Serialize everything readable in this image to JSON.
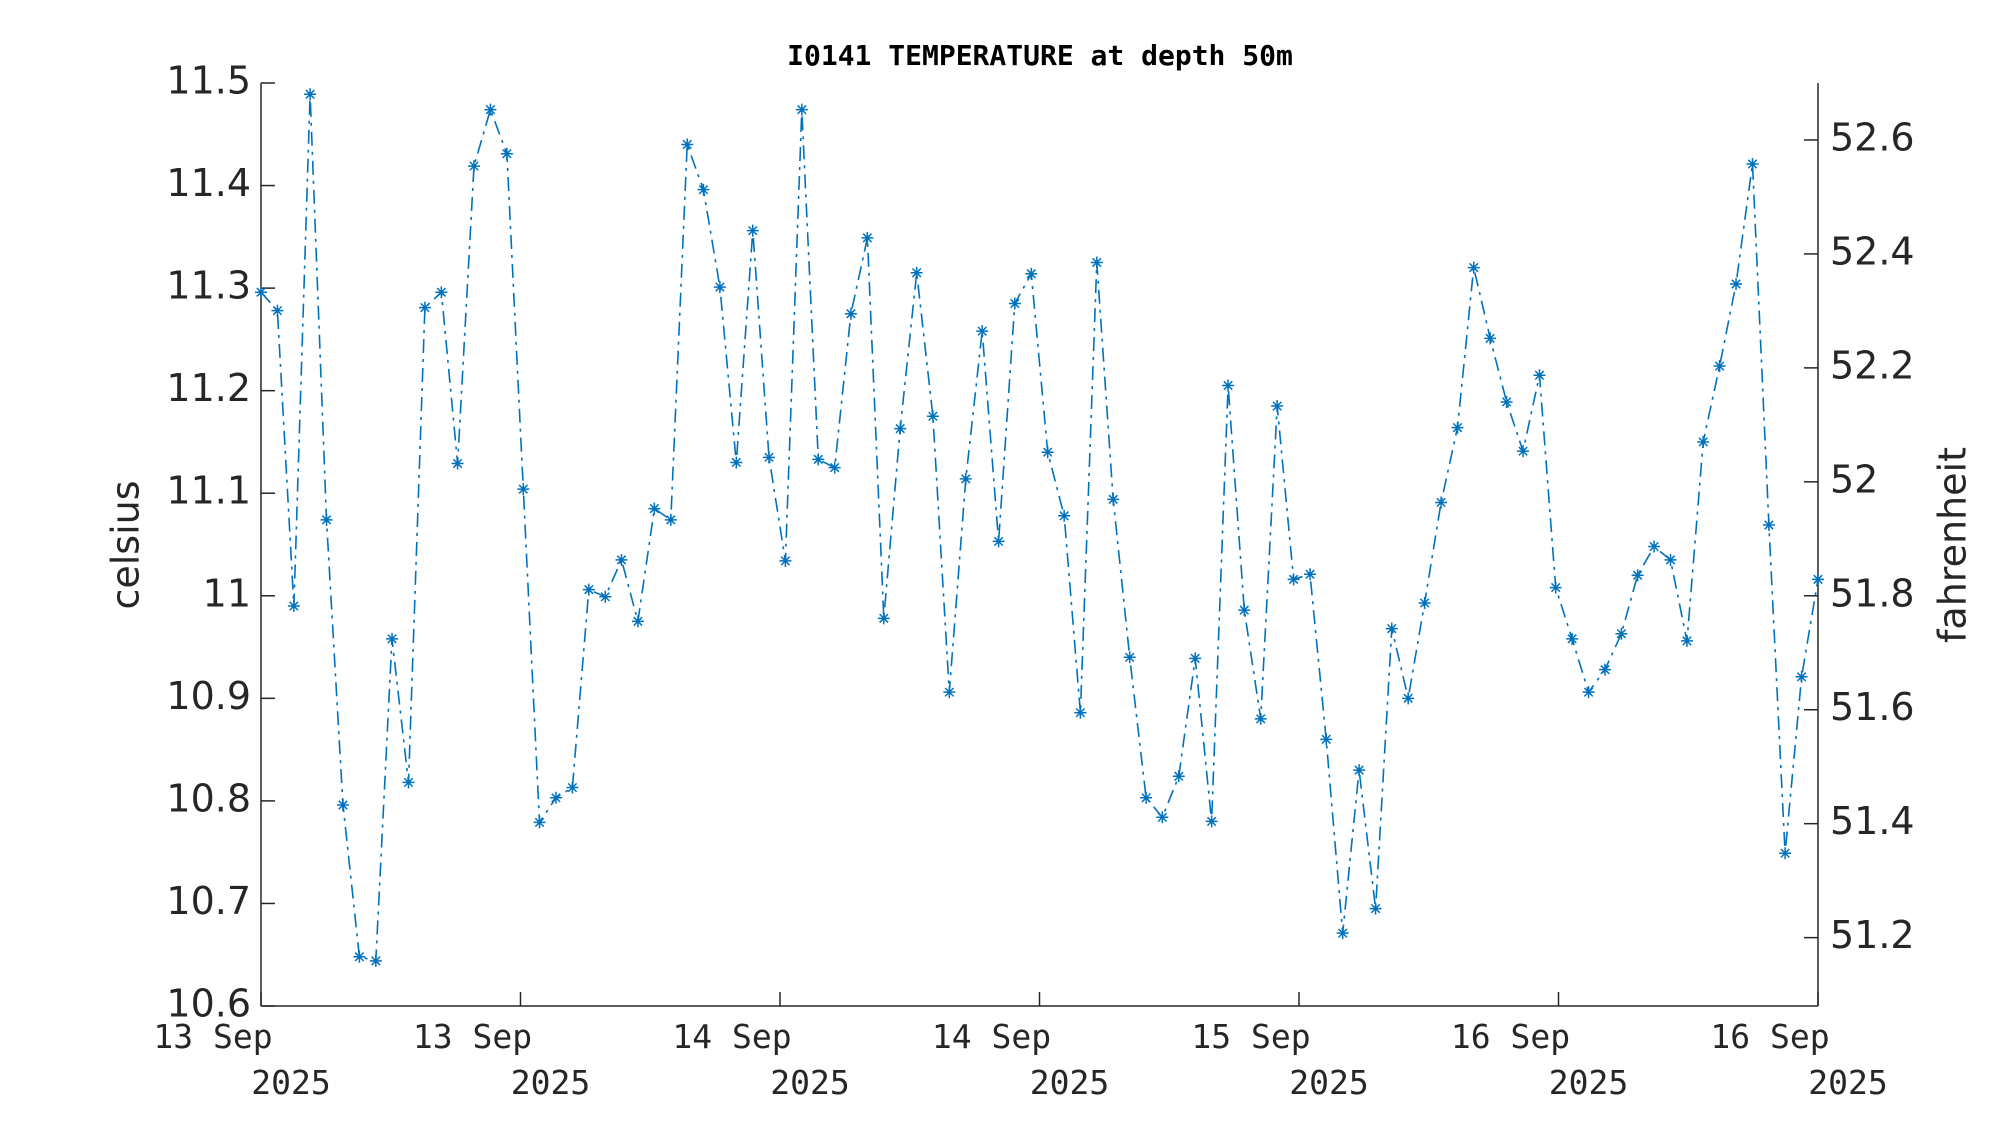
{
  "chart_data": {
    "type": "line",
    "title": "I0141 TEMPERATURE at depth 50m",
    "ylabel": "celsius",
    "y2label": "fahrenheit",
    "x": [
      0,
      0.76,
      1.52,
      2.27,
      3.03,
      3.79,
      4.55,
      5.31,
      6.06,
      6.82,
      7.58,
      8.34,
      9.09,
      9.85,
      10.61,
      11.37,
      12.13,
      12.88,
      13.64,
      14.4,
      15.16,
      15.92,
      16.67,
      17.43,
      18.19,
      18.95,
      19.71,
      20.46,
      21.22,
      21.98,
      22.74,
      23.49,
      24.25,
      25.01,
      25.77,
      26.53,
      27.28,
      28.04,
      28.8,
      29.56,
      30.32,
      31.07,
      31.83,
      32.59,
      33.35,
      34.11,
      34.86,
      35.62,
      36.38,
      37.14,
      37.89,
      38.65,
      39.41,
      40.17,
      40.93,
      41.68,
      42.44,
      43.2,
      43.96,
      44.72,
      45.47,
      46.23,
      46.99,
      47.75,
      48.51,
      49.26,
      50.02,
      50.78,
      51.54,
      52.29,
      53.05,
      53.81,
      54.57,
      55.33,
      56.08,
      56.84,
      57.6,
      58.36,
      59.12,
      59.87,
      60.63,
      61.39,
      62.15,
      62.91,
      63.66,
      64.42,
      65.18,
      65.94,
      66.69,
      67.45,
      68.21,
      68.97,
      69.73,
      70.48,
      71.24,
      72
    ],
    "series": [
      {
        "name": "celsius",
        "color": "#0072bd",
        "values": [
          11.296,
          11.278,
          10.99,
          11.489,
          11.074,
          10.796,
          10.648,
          10.644,
          10.958,
          10.818,
          11.281,
          11.296,
          11.129,
          11.419,
          11.474,
          11.431,
          11.104,
          10.779,
          10.803,
          10.813,
          11.006,
          10.999,
          11.035,
          10.975,
          11.085,
          11.074,
          11.44,
          11.396,
          11.301,
          11.13,
          11.356,
          11.135,
          11.034,
          11.474,
          11.133,
          11.125,
          11.275,
          11.349,
          10.978,
          11.163,
          11.315,
          11.175,
          10.906,
          11.114,
          11.258,
          11.053,
          11.285,
          11.314,
          11.14,
          11.078,
          10.886,
          11.325,
          11.094,
          10.94,
          10.803,
          10.784,
          10.824,
          10.939,
          10.78,
          11.205,
          10.986,
          10.88,
          11.185,
          11.016,
          11.021,
          10.86,
          10.671,
          10.83,
          10.695,
          10.968,
          10.9,
          10.993,
          11.091,
          11.164,
          11.32,
          11.251,
          11.189,
          11.141,
          11.215,
          11.008,
          10.958,
          10.906,
          10.928,
          10.963,
          11.02,
          11.048,
          11.035,
          10.956,
          11.15,
          11.224,
          11.304,
          11.421,
          11.069,
          10.749,
          10.921,
          11.016
        ]
      }
    ],
    "xlim": [
      0,
      72
    ],
    "xticks": [
      {
        "value": 0,
        "label": "13 Sep 2025"
      },
      {
        "value": 12,
        "label": "13 Sep 2025"
      },
      {
        "value": 24,
        "label": "14 Sep 2025"
      },
      {
        "value": 36,
        "label": "14 Sep 2025"
      },
      {
        "value": 48,
        "label": "15 Sep 2025"
      },
      {
        "value": 60,
        "label": "16 Sep 2025"
      },
      {
        "value": 72,
        "label": "16 Sep 2025"
      }
    ],
    "ylim": [
      10.6,
      11.5
    ],
    "yticks": [
      10.6,
      10.7,
      10.8,
      10.9,
      11,
      11.1,
      11.2,
      11.3,
      11.4,
      11.5
    ],
    "y2lim": [
      51.08,
      52.7
    ],
    "y2ticks": [
      51.2,
      51.4,
      51.6,
      51.8,
      52,
      52.2,
      52.4,
      52.6
    ],
    "grid": false,
    "marker": "asterisk",
    "line_style": "dash-dot"
  }
}
